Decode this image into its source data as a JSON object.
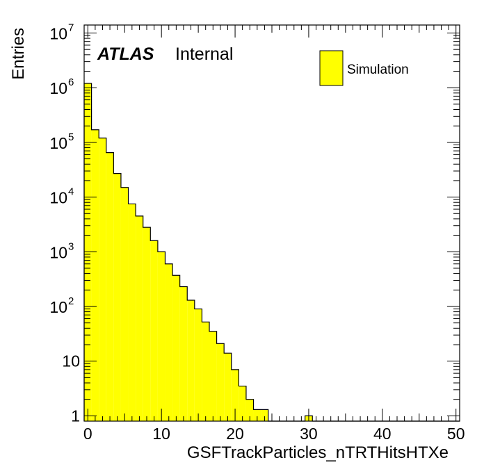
{
  "chart_data": {
    "type": "bar",
    "style": "histogram",
    "title": "",
    "xlabel": "GSFTrackParticles_nTRTHitsHTXe",
    "ylabel": "Entries",
    "xlim": [
      -0.5,
      50.5
    ],
    "ylim": [
      0.8,
      14000000
    ],
    "yscale": "log",
    "x_ticks": [
      0,
      10,
      20,
      30,
      40,
      50
    ],
    "y_ticks": [
      {
        "value": 1,
        "base": "1",
        "exp": ""
      },
      {
        "value": 10,
        "base": "10",
        "exp": ""
      },
      {
        "value": 100,
        "base": "10",
        "exp": "2"
      },
      {
        "value": 1000,
        "base": "10",
        "exp": "3"
      },
      {
        "value": 10000,
        "base": "10",
        "exp": "4"
      },
      {
        "value": 100000,
        "base": "10",
        "exp": "5"
      },
      {
        "value": 1000000,
        "base": "10",
        "exp": "6"
      },
      {
        "value": 10000000,
        "base": "10",
        "exp": "7"
      }
    ],
    "bin_width": 1,
    "bin_centers": [
      0,
      1,
      2,
      3,
      4,
      5,
      6,
      7,
      8,
      9,
      10,
      11,
      12,
      13,
      14,
      15,
      16,
      17,
      18,
      19,
      20,
      21,
      22,
      23,
      24,
      25,
      26,
      27,
      28,
      29,
      30,
      31,
      32,
      33,
      34,
      35,
      36,
      37,
      38,
      39,
      40,
      41,
      42,
      43,
      44,
      45,
      46,
      47,
      48,
      49,
      50
    ],
    "values": [
      1200000,
      170000,
      120000,
      65000,
      27000,
      15000,
      7500,
      4500,
      2800,
      1600,
      1000,
      600,
      370,
      230,
      130,
      90,
      52,
      35,
      21,
      14,
      7,
      3.5,
      2,
      1.3,
      1.3,
      0,
      0,
      0,
      0,
      0,
      1,
      0,
      0,
      0,
      0,
      0,
      0,
      0,
      0,
      0,
      0,
      0,
      0,
      0,
      0,
      0,
      0,
      0,
      0,
      0,
      0
    ],
    "fill_color": "#ffff00",
    "line_color": "#000000",
    "grid": false,
    "legend": {
      "position": "top-right",
      "entries": [
        {
          "label": "Simulation",
          "color": "#ffff00"
        }
      ]
    },
    "annotations": {
      "atlas": "ATLAS",
      "status": "Internal"
    }
  }
}
